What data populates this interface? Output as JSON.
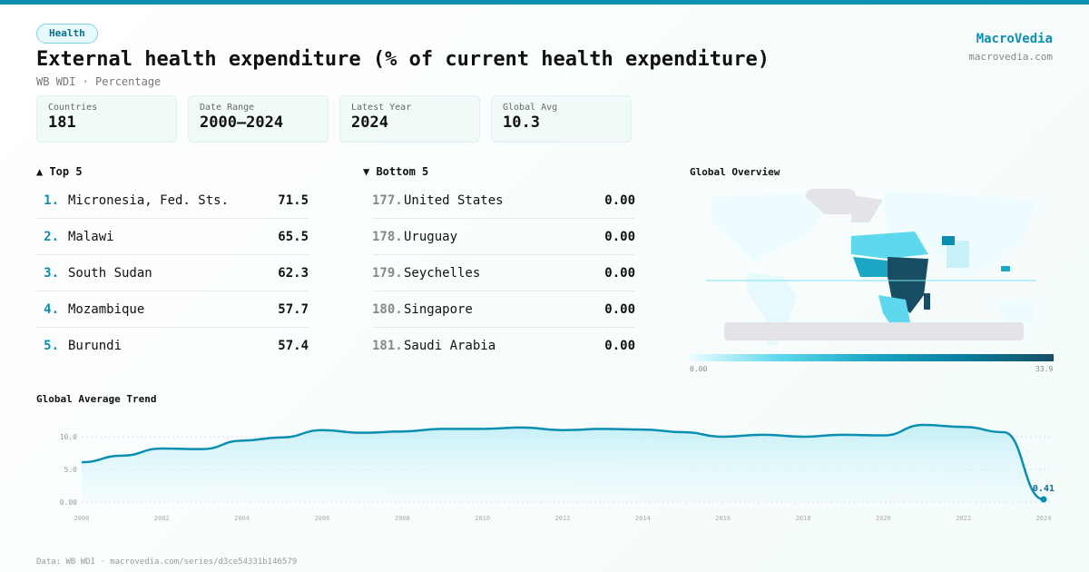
{
  "header": {
    "badge": "Health",
    "title": "External health expenditure (% of current health expenditure)",
    "subtitle": "WB WDI · Percentage",
    "brand": "MacroVedia",
    "brand_url": "macrovedia.com"
  },
  "stats": [
    {
      "label": "Countries",
      "value": "181"
    },
    {
      "label": "Date Range",
      "value": "2000–2024"
    },
    {
      "label": "Latest Year",
      "value": "2024"
    },
    {
      "label": "Global Avg",
      "value": "10.3"
    }
  ],
  "top5": {
    "title": "▲ Top 5",
    "items": [
      {
        "rank": "1.",
        "name": "Micronesia, Fed. Sts.",
        "value": "71.5"
      },
      {
        "rank": "2.",
        "name": "Malawi",
        "value": "65.5"
      },
      {
        "rank": "3.",
        "name": "South Sudan",
        "value": "62.3"
      },
      {
        "rank": "4.",
        "name": "Mozambique",
        "value": "57.7"
      },
      {
        "rank": "5.",
        "name": "Burundi",
        "value": "57.4"
      }
    ]
  },
  "bottom5": {
    "title": "▼ Bottom 5",
    "items": [
      {
        "rank": "177.",
        "name": "United States",
        "value": "0.00"
      },
      {
        "rank": "178.",
        "name": "Uruguay",
        "value": "0.00"
      },
      {
        "rank": "179.",
        "name": "Seychelles",
        "value": "0.00"
      },
      {
        "rank": "180.",
        "name": "Singapore",
        "value": "0.00"
      },
      {
        "rank": "181.",
        "name": "Saudi Arabia",
        "value": "0.00"
      }
    ]
  },
  "map": {
    "title": "Global Overview",
    "legend_min": "0.00",
    "legend_max": "33.9",
    "colors": [
      "#eafcff",
      "#5dd8ec",
      "#1aa6c4",
      "#0a7f9d",
      "#184e63"
    ],
    "no_data_color": "#e4e4e8"
  },
  "chart_data": {
    "type": "area",
    "title": "Global Average Trend",
    "x": [
      2000,
      2001,
      2002,
      2003,
      2004,
      2005,
      2006,
      2007,
      2008,
      2009,
      2010,
      2011,
      2012,
      2013,
      2014,
      2015,
      2016,
      2017,
      2018,
      2019,
      2020,
      2021,
      2022,
      2023,
      2024
    ],
    "values": [
      6.1,
      7.1,
      8.2,
      8.1,
      9.4,
      9.9,
      11.0,
      10.6,
      10.8,
      11.2,
      11.2,
      11.4,
      11.0,
      11.2,
      11.1,
      10.7,
      10.0,
      10.3,
      10.0,
      10.3,
      10.2,
      11.8,
      11.5,
      10.7,
      0.41
    ],
    "yticks": [
      "0.00",
      "5.0",
      "10.0"
    ],
    "ytick_values": [
      0,
      5,
      10
    ],
    "xticks": [
      "2000",
      "2002",
      "2004",
      "2006",
      "2008",
      "2010",
      "2012",
      "2014",
      "2016",
      "2018",
      "2020",
      "2022",
      "2024"
    ],
    "ylim": [
      0,
      12.5
    ],
    "grid": true,
    "last_label": "0.41",
    "color": "#0a8fb0"
  },
  "footer": "Data: WB WDI · macrovedia.com/series/d3ce54331b146579"
}
